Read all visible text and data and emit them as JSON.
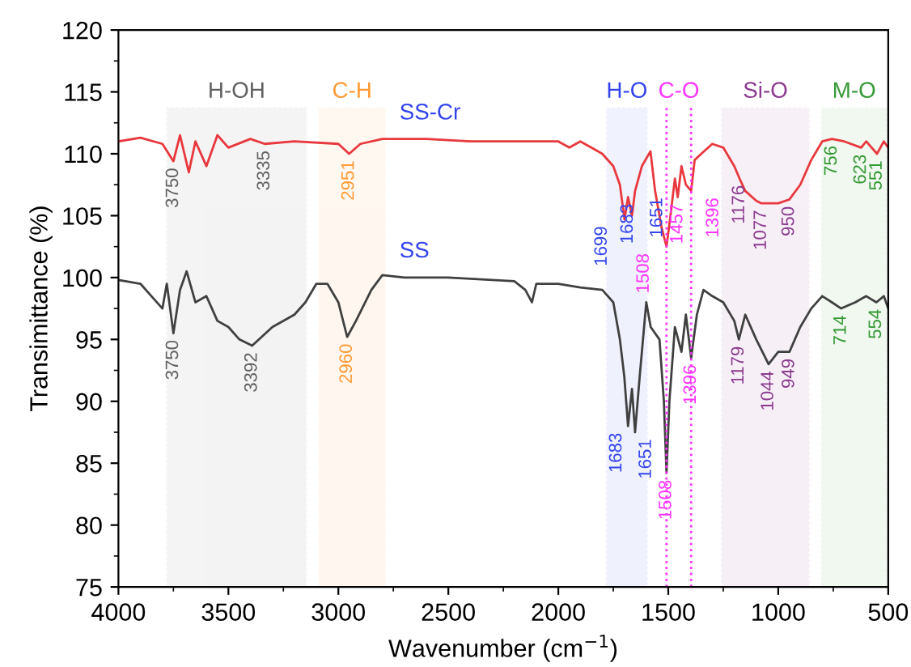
{
  "chart_data": {
    "type": "line",
    "xlabel": "Wavenumber (cm$^{−1}$)",
    "ylabel": "Transimittance (%)",
    "xlim": [
      4000,
      500
    ],
    "ylim": [
      75,
      120
    ],
    "xticks": [
      4000,
      3500,
      3000,
      2500,
      2000,
      1500,
      1000,
      500
    ],
    "yticks": [
      75,
      80,
      85,
      90,
      95,
      100,
      105,
      110,
      115,
      120
    ],
    "grid": false,
    "legend": false,
    "line_style": "solid",
    "marker": "none",
    "series": [
      {
        "name": "SS-Cr",
        "color": "#e8383d",
        "x": [
          4000,
          3900,
          3800,
          3750,
          3720,
          3680,
          3650,
          3600,
          3550,
          3500,
          3400,
          3335,
          3200,
          3000,
          2951,
          2900,
          2800,
          2600,
          2400,
          2200,
          2000,
          1950,
          1900,
          1850,
          1800,
          1750,
          1720,
          1699,
          1683,
          1665,
          1651,
          1620,
          1581,
          1560,
          1530,
          1508,
          1490,
          1470,
          1457,
          1440,
          1420,
          1396,
          1380,
          1350,
          1300,
          1250,
          1200,
          1176,
          1150,
          1100,
          1077,
          1000,
          950,
          900,
          850,
          800,
          756,
          700,
          623,
          600,
          551,
          520,
          500
        ],
        "values": [
          111.0,
          111.3,
          110.8,
          109.4,
          111.5,
          108.5,
          111.0,
          109.0,
          111.5,
          110.5,
          111.2,
          110.8,
          111.0,
          110.8,
          110.0,
          110.8,
          111.2,
          111.2,
          111.0,
          111.0,
          111.0,
          110.5,
          111.0,
          110.5,
          110.0,
          109.0,
          107.5,
          104.7,
          106.5,
          105.0,
          107.0,
          109.0,
          110.2,
          107.0,
          104.0,
          102.5,
          105.0,
          108.0,
          106.5,
          109.0,
          107.5,
          107.0,
          109.5,
          110.0,
          110.8,
          110.5,
          109.0,
          108.0,
          107.0,
          106.2,
          106.0,
          106.0,
          106.3,
          107.5,
          109.5,
          111.0,
          111.2,
          111.0,
          110.5,
          111.0,
          110.0,
          111.0,
          110.5
        ]
      },
      {
        "name": "SS",
        "color": "#404040",
        "x": [
          4000,
          3900,
          3850,
          3800,
          3780,
          3750,
          3720,
          3690,
          3650,
          3600,
          3550,
          3500,
          3450,
          3392,
          3300,
          3200,
          3150,
          3100,
          3050,
          3000,
          2960,
          2920,
          2850,
          2800,
          2700,
          2500,
          2300,
          2200,
          2150,
          2120,
          2100,
          2000,
          1900,
          1800,
          1750,
          1720,
          1700,
          1683,
          1665,
          1651,
          1630,
          1600,
          1580,
          1540,
          1520,
          1508,
          1495,
          1470,
          1440,
          1420,
          1396,
          1370,
          1340,
          1300,
          1250,
          1200,
          1179,
          1150,
          1100,
          1044,
          1000,
          949,
          900,
          850,
          800,
          756,
          714,
          650,
          600,
          554,
          520,
          500
        ],
        "values": [
          99.8,
          99.5,
          98.5,
          97.5,
          99.5,
          95.5,
          99.0,
          100.5,
          98.0,
          98.5,
          96.5,
          96.0,
          95.0,
          94.5,
          96.0,
          97.0,
          98.0,
          99.5,
          99.5,
          98.0,
          95.2,
          96.5,
          99.0,
          100.2,
          100.0,
          100.0,
          99.8,
          99.7,
          99.0,
          98.0,
          99.5,
          99.5,
          99.2,
          99.0,
          98.0,
          95.0,
          92.0,
          88.0,
          91.0,
          87.5,
          92.0,
          98.0,
          96.0,
          95.0,
          90.0,
          84.2,
          90.0,
          96.0,
          94.0,
          97.0,
          93.5,
          97.0,
          99.0,
          98.5,
          98.0,
          96.5,
          95.0,
          97.0,
          95.0,
          93.0,
          94.0,
          94.0,
          96.0,
          97.5,
          98.5,
          98.0,
          97.5,
          98.0,
          98.5,
          98.0,
          98.5,
          97.5
        ]
      }
    ],
    "bands": [
      {
        "axis": "x",
        "from": 3779,
        "to": 3147,
        "label": "H-OH",
        "color": "#606060"
      },
      {
        "axis": "x",
        "from": 3088,
        "to": 2787,
        "label": "C-H",
        "color": "#ff9933"
      },
      {
        "axis": "x",
        "from": 1780,
        "to": 1596,
        "label": "H-O",
        "color": "#3344ee"
      },
      {
        "axis": "x",
        "from": 1257,
        "to": 860,
        "label": "Si-O",
        "color": "#8b3a8f"
      },
      {
        "axis": "x",
        "from": 802,
        "to": 508,
        "label": "M-O",
        "color": "#339933"
      }
    ],
    "ref_lines": [
      {
        "axis": "x",
        "value": 1508,
        "label": "C-O",
        "color": "#ff33ff",
        "line_style": "dotted"
      },
      {
        "axis": "x",
        "value": 1396,
        "label": null,
        "color": "#ff33ff",
        "line_style": "dotted"
      }
    ],
    "annotations": [
      {
        "text": "3750",
        "x": 3750,
        "y": 109.4
      },
      {
        "text": "3335",
        "x": 3335,
        "y": 110.8
      },
      {
        "text": "2951",
        "x": 2951,
        "y": 110.0
      },
      {
        "text": "1699",
        "x": 1699,
        "y": 104.7
      },
      {
        "text": "1683",
        "x": 1683,
        "y": 106.5
      },
      {
        "text": "1651",
        "x": 1651,
        "y": 107.0
      },
      {
        "text": "1508",
        "x": 1508,
        "y": 102.5
      },
      {
        "text": "1457",
        "x": 1457,
        "y": 106.5
      },
      {
        "text": "1396",
        "x": 1396,
        "y": 107.0
      },
      {
        "text": "1176",
        "x": 1176,
        "y": 108.0
      },
      {
        "text": "1077",
        "x": 1077,
        "y": 106.0
      },
      {
        "text": "950",
        "x": 950,
        "y": 106.3
      },
      {
        "text": "756",
        "x": 756,
        "y": 111.2
      },
      {
        "text": "623",
        "x": 623,
        "y": 110.5
      },
      {
        "text": "551",
        "x": 551,
        "y": 110.0
      },
      {
        "text": "3750",
        "x": 3750,
        "y": 95.5
      },
      {
        "text": "3392",
        "x": 3392,
        "y": 94.5
      },
      {
        "text": "2960",
        "x": 2960,
        "y": 95.2
      },
      {
        "text": "1683",
        "x": 1683,
        "y": 88.0
      },
      {
        "text": "1651",
        "x": 1651,
        "y": 87.5
      },
      {
        "text": "1508",
        "x": 1508,
        "y": 84.2
      },
      {
        "text": "1396",
        "x": 1396,
        "y": 93.5
      },
      {
        "text": "1179",
        "x": 1179,
        "y": 95.0
      },
      {
        "text": "1044",
        "x": 1044,
        "y": 93.0
      },
      {
        "text": "949",
        "x": 949,
        "y": 94.0
      },
      {
        "text": "714",
        "x": 714,
        "y": 97.5
      },
      {
        "text": "554",
        "x": 554,
        "y": 98.0
      }
    ]
  }
}
